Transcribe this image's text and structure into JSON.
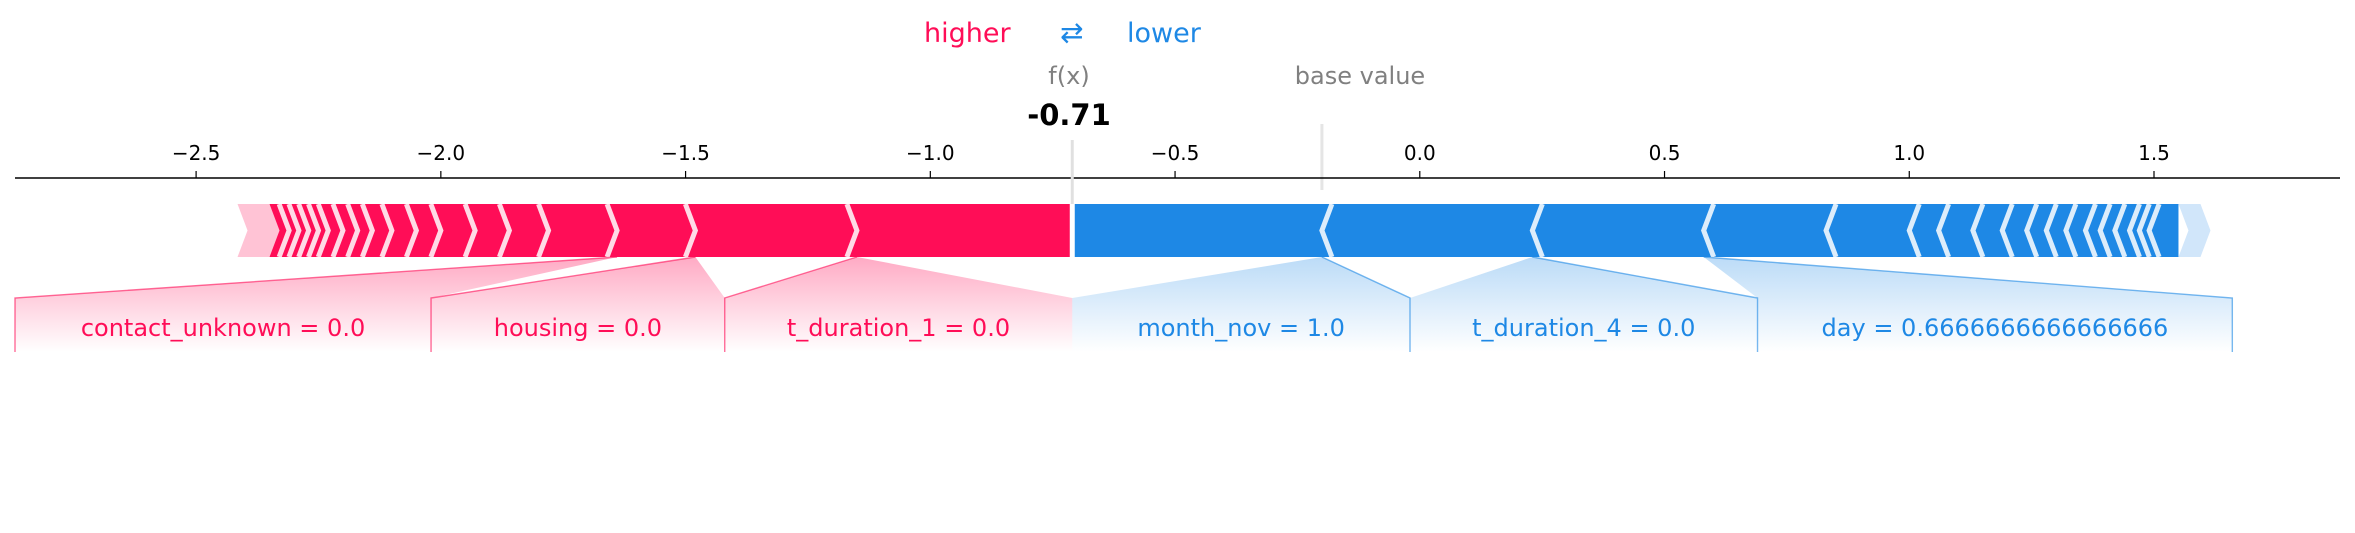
{
  "legend": {
    "higher": "higher",
    "arrows": "⇄",
    "lower": "lower"
  },
  "colors": {
    "positive": "#ff0d57",
    "negative": "#1e88e5",
    "positive_light": "#ffc3d5",
    "negative_light": "#d1e6fa",
    "axis_text": "#000000",
    "muted": "#808080"
  },
  "chart_data": {
    "type": "force",
    "output_label": "f(x)",
    "output_value": -0.71,
    "output_value_label": "-0.71",
    "base_value_label": "base value",
    "base_value": -0.2,
    "xlim": [
      -2.87,
      1.88
    ],
    "ticks": [
      -2.5,
      -2.0,
      -1.5,
      -1.0,
      -0.5,
      0.0,
      0.5,
      1.0,
      1.5
    ],
    "tick_labels": [
      "−2.5",
      "−2.0",
      "−1.5",
      "−1.0",
      "−0.5",
      "0.0",
      "0.5",
      "1.0",
      "1.5"
    ],
    "positive_span": [
      -2.35,
      -0.71
    ],
    "negative_span": [
      -0.71,
      1.55
    ],
    "positive_chevrons": [
      -2.31,
      -2.29,
      -2.27,
      -2.25,
      -2.23,
      -2.2,
      -2.17,
      -2.14,
      -2.1,
      -2.05,
      -2.0,
      -1.93,
      -1.86,
      -1.78,
      -1.64,
      -1.48,
      -1.15
    ],
    "negative_chevrons": [
      -0.2,
      0.23,
      0.58,
      0.83,
      1.0,
      1.06,
      1.13,
      1.19,
      1.24,
      1.28,
      1.32,
      1.36,
      1.39,
      1.42,
      1.45,
      1.47,
      1.49
    ],
    "labels": [
      {
        "text": "contact_unknown = 0.0",
        "x": -1.64,
        "side": "positive",
        "box": [
          -2.87,
          -2.02
        ]
      },
      {
        "text": "housing = 0.0",
        "x": -1.48,
        "side": "positive",
        "box": [
          -2.02,
          -1.42
        ]
      },
      {
        "text": "t_duration_1 = 0.0",
        "x": -1.15,
        "side": "positive",
        "box": [
          -1.42,
          -0.71
        ]
      },
      {
        "text": "month_nov = 1.0",
        "x": -0.2,
        "side": "negative",
        "box": [
          -0.71,
          -0.02
        ]
      },
      {
        "text": "t_duration_4 = 0.0",
        "x": 0.23,
        "side": "negative",
        "box": [
          -0.02,
          0.69
        ]
      },
      {
        "text": "day = 0.6666666666666666",
        "x": 0.58,
        "side": "negative",
        "box": [
          0.69,
          1.66
        ]
      }
    ]
  }
}
